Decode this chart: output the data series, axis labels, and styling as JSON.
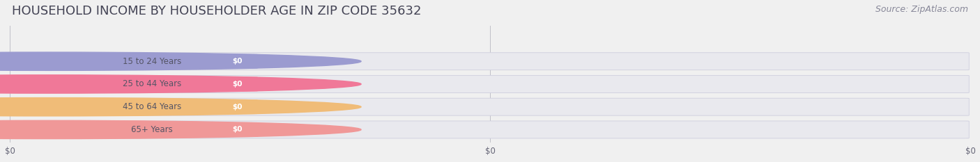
{
  "title": "HOUSEHOLD INCOME BY HOUSEHOLDER AGE IN ZIP CODE 35632",
  "source": "Source: ZipAtlas.com",
  "categories": [
    "15 to 24 Years",
    "25 to 44 Years",
    "45 to 64 Years",
    "65+ Years"
  ],
  "values": [
    0,
    0,
    0,
    0
  ],
  "bar_colors": [
    "#9b9bd0",
    "#f07898",
    "#f0bc78",
    "#f09898"
  ],
  "bg_color": "#f0f0f0",
  "value_labels": [
    "$0",
    "$0",
    "$0",
    "$0"
  ],
  "xtick_labels": [
    "$0",
    "$0",
    "$0"
  ],
  "title_fontsize": 13,
  "source_fontsize": 9,
  "figsize": [
    14.06,
    2.33
  ],
  "dpi": 100
}
